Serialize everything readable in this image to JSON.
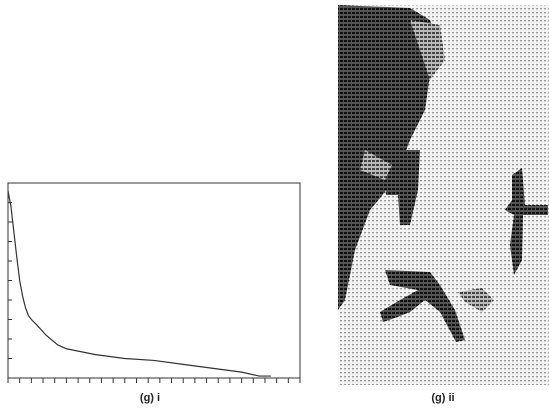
{
  "chart_data": {
    "type": "line",
    "x": [
      0,
      1,
      2,
      3,
      4,
      5,
      6,
      7,
      8,
      10,
      13,
      17,
      20,
      30,
      40,
      50,
      60,
      70,
      80,
      86,
      90
    ],
    "values": [
      96,
      88,
      75,
      62,
      50,
      42,
      36,
      32,
      30,
      27,
      22,
      17,
      15,
      12,
      10,
      9,
      7,
      5,
      3,
      1,
      1
    ],
    "color": "#333333",
    "xlim": [
      0,
      100
    ],
    "ylim": [
      0,
      100
    ],
    "xticks": [
      0,
      4,
      8,
      12,
      16,
      20,
      24,
      28,
      32,
      36,
      40,
      44,
      48,
      52,
      56,
      60,
      64,
      68,
      72,
      76,
      80,
      84,
      88,
      92,
      96,
      100
    ],
    "yticks": [
      0,
      10,
      20,
      30,
      40,
      50,
      60,
      70,
      80,
      90,
      100
    ]
  },
  "captions": [
    "(g) i",
    "(g) ii"
  ]
}
